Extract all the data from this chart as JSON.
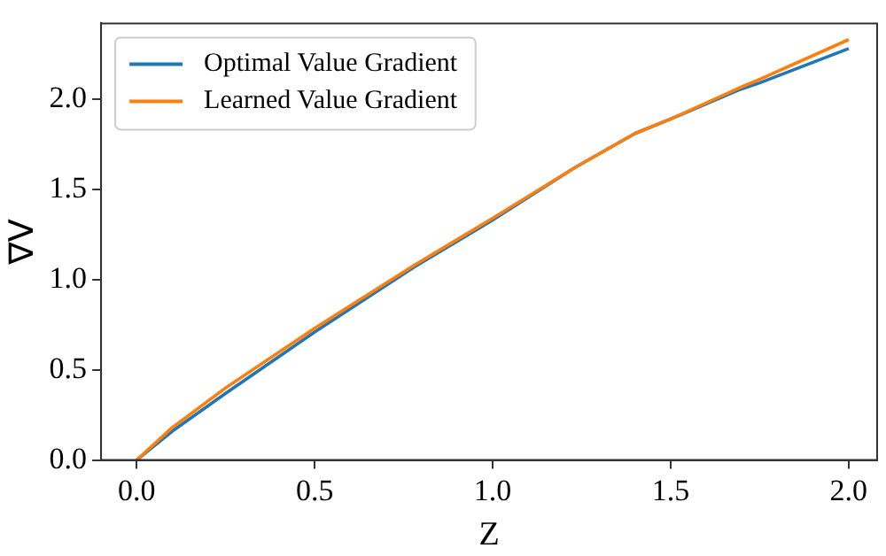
{
  "chart_data": {
    "type": "line",
    "xlabel": "Z",
    "ylabel": "∇V",
    "xlim": [
      -0.1,
      2.08
    ],
    "ylim": [
      0,
      2.42
    ],
    "xticks": [
      {
        "value": 0,
        "label": "0.0"
      },
      0.5,
      {
        "value": 1,
        "label": "1.0"
      },
      1.5,
      {
        "value": 2,
        "label": "2.0"
      }
    ],
    "yticks": [
      {
        "value": 0,
        "label": "0.0"
      },
      0.5,
      {
        "value": 1,
        "label": "1.0"
      },
      1.5,
      {
        "value": 2,
        "label": "2.0"
      }
    ],
    "grid": false,
    "legend": "top left",
    "marker": "none",
    "line_style": "solid",
    "series": [
      {
        "name": "Optimal Value Gradient",
        "color": "#1f77b4",
        "x": [
          0,
          0.1,
          0.25,
          0.5,
          0.78,
          1.0,
          1.23,
          1.4,
          1.5,
          1.69,
          1.75,
          2.0
        ],
        "values": [
          0,
          0.16,
          0.37,
          0.71,
          1.07,
          1.33,
          1.62,
          1.81,
          1.89,
          2.05,
          2.09,
          2.28
        ]
      },
      {
        "name": "Learned Value Gradient",
        "color": "#ff7f0e",
        "x": [
          0,
          0.1,
          0.25,
          0.5,
          0.78,
          1.0,
          1.23,
          1.4,
          1.5,
          1.69,
          1.75,
          2.0
        ],
        "values": [
          0,
          0.18,
          0.4,
          0.73,
          1.08,
          1.34,
          1.62,
          1.81,
          1.89,
          2.06,
          2.11,
          2.33
        ]
      }
    ]
  }
}
